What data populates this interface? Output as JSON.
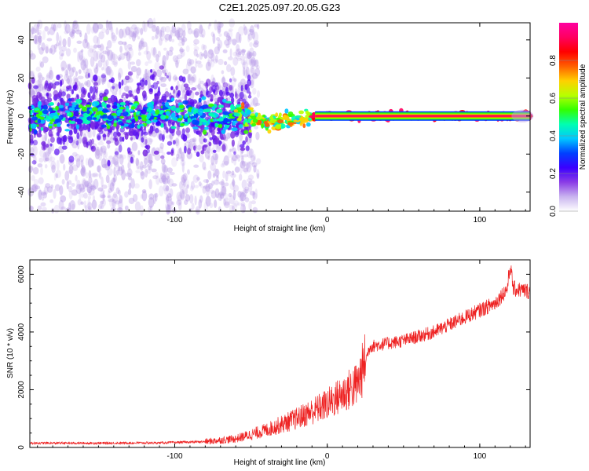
{
  "title": "C2E1.2025.097.20.05.G23",
  "chart_data": [
    {
      "type": "heatmap",
      "xlabel": "Height of straight line (km)",
      "ylabel": "Frequency (Hz)",
      "xlim": [
        -195,
        133
      ],
      "ylim": [
        -50,
        49
      ],
      "x_ticks": [
        -100,
        0,
        100
      ],
      "x_tick_labels": [
        "-100",
        "0",
        "100"
      ],
      "y_ticks": [
        -40,
        -20,
        0,
        20,
        40
      ],
      "y_tick_labels": [
        "-40",
        "-20",
        "0",
        "20",
        "40"
      ],
      "grid": false,
      "ridge": [
        {
          "x": -190,
          "y": 0.5
        },
        {
          "x": -150,
          "y": 1
        },
        {
          "x": -100,
          "y": 1
        },
        {
          "x": -70,
          "y": 0.5
        },
        {
          "x": -50,
          "y": -0.5
        },
        {
          "x": -40,
          "y": -2.5
        },
        {
          "x": -30,
          "y": -3
        },
        {
          "x": -20,
          "y": -2
        },
        {
          "x": -10,
          "y": 0
        },
        {
          "x": 0,
          "y": 0
        },
        {
          "x": 50,
          "y": 0
        },
        {
          "x": 100,
          "y": 0
        },
        {
          "x": 133,
          "y": 0
        }
      ],
      "colorbar": {
        "label": "Normalized spectral amplitude",
        "range": [
          0,
          1
        ],
        "ticks": [
          0.0,
          0.2,
          0.4,
          0.6,
          0.8
        ],
        "tick_labels": [
          "0.0",
          "0.2",
          "0.4",
          "0.6",
          "0.8"
        ],
        "colors": [
          "#ffffff",
          "#c9b3ef",
          "#8a3ce6",
          "#3a00ff",
          "#0040ff",
          "#00c8ff",
          "#00ffb0",
          "#33ff00",
          "#b8ff00",
          "#ffd000",
          "#ff6000",
          "#ff0000",
          "#ff0060",
          "#ff00a0"
        ]
      }
    },
    {
      "type": "line",
      "xlabel": "Height of straight line (km)",
      "ylabel": "SNR (10 * v/v)",
      "xlim": [
        -195,
        133
      ],
      "ylim": [
        0,
        6500
      ],
      "x_ticks": [
        -100,
        0,
        100
      ],
      "x_tick_labels": [
        "-100",
        "0",
        "100"
      ],
      "y_ticks": [
        0,
        2000,
        4000,
        6000
      ],
      "y_tick_labels": [
        "0",
        "2000",
        "4000",
        "6000"
      ],
      "grid": false,
      "color": "#ee2222",
      "trend": [
        {
          "x": -195,
          "y": 150
        },
        {
          "x": -150,
          "y": 150
        },
        {
          "x": -110,
          "y": 160
        },
        {
          "x": -80,
          "y": 200
        },
        {
          "x": -60,
          "y": 300
        },
        {
          "x": -40,
          "y": 600
        },
        {
          "x": -20,
          "y": 1000
        },
        {
          "x": 0,
          "y": 1500
        },
        {
          "x": 20,
          "y": 2200
        },
        {
          "x": 25,
          "y": 3000
        },
        {
          "x": 28,
          "y": 3500
        },
        {
          "x": 50,
          "y": 3700
        },
        {
          "x": 70,
          "y": 4000
        },
        {
          "x": 90,
          "y": 4500
        },
        {
          "x": 110,
          "y": 5000
        },
        {
          "x": 118,
          "y": 5500
        },
        {
          "x": 120,
          "y": 6300
        },
        {
          "x": 122,
          "y": 5500
        },
        {
          "x": 133,
          "y": 5400
        }
      ]
    }
  ]
}
